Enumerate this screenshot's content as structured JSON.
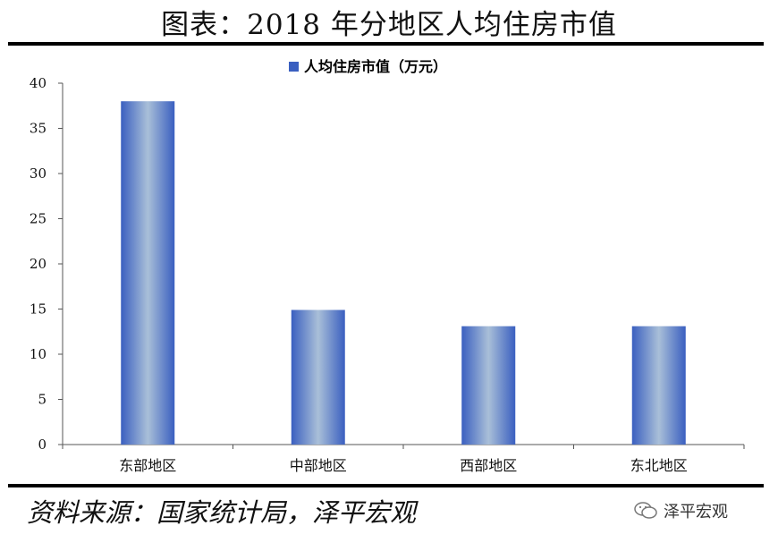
{
  "title": "图表：2018 年分地区人均住房市值",
  "source": "资料来源：国家统计局，泽平宏观",
  "watermark": {
    "text": "泽平宏观",
    "icon": "wechat-icon"
  },
  "chart_data": {
    "type": "bar",
    "categories": [
      "东部地区",
      "中部地区",
      "西部地区",
      "东北地区"
    ],
    "series": [
      {
        "name": "人均住房市值（万元）",
        "values": [
          38,
          14.9,
          13.1,
          13.1
        ]
      }
    ],
    "ylim": [
      0,
      40
    ],
    "yticks": [
      0,
      5,
      10,
      15,
      20,
      25,
      30,
      35,
      40
    ],
    "grid": false,
    "legend": "top-center",
    "colors": {
      "bar_edge": "#3a5fc0",
      "bar_center": "#a9bfd8"
    }
  }
}
